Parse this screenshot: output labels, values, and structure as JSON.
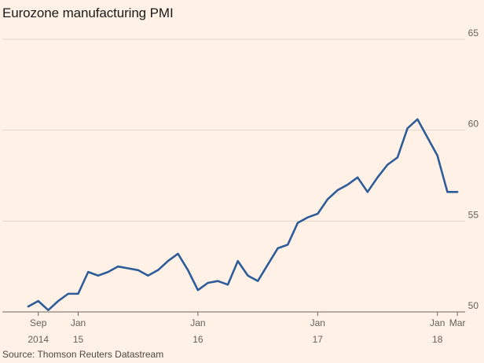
{
  "chart_data": {
    "type": "line",
    "title": "Eurozone manufacturing PMI",
    "source": "Source: Thomson Reuters Datastream",
    "xlabel": "",
    "ylabel": "",
    "ylim": [
      50,
      65
    ],
    "yticks": [
      "50",
      "55",
      "60",
      "65"
    ],
    "grid": true,
    "y_axis_position": "right",
    "line_color": "#2e5c99",
    "x_ticks": [
      {
        "x": "2014-09",
        "line1": "Sep",
        "line2": "2014"
      },
      {
        "x": "2015-01",
        "line1": "Jan",
        "line2": "15"
      },
      {
        "x": "2016-01",
        "line1": "Jan",
        "line2": "16"
      },
      {
        "x": "2017-01",
        "line1": "Jan",
        "line2": "17"
      },
      {
        "x": "2018-01",
        "line1": "Jan",
        "line2": "18"
      },
      {
        "x": "2018-03",
        "line1": "Mar",
        "line2": ""
      }
    ],
    "x": [
      "2014-08",
      "2014-09",
      "2014-10",
      "2014-11",
      "2014-12",
      "2015-01",
      "2015-02",
      "2015-03",
      "2015-04",
      "2015-05",
      "2015-06",
      "2015-07",
      "2015-08",
      "2015-09",
      "2015-10",
      "2015-11",
      "2015-12",
      "2016-01",
      "2016-02",
      "2016-03",
      "2016-04",
      "2016-05",
      "2016-06",
      "2016-07",
      "2016-08",
      "2016-09",
      "2016-10",
      "2016-11",
      "2016-12",
      "2017-01",
      "2017-02",
      "2017-03",
      "2017-04",
      "2017-05",
      "2017-06",
      "2017-07",
      "2017-08",
      "2017-09",
      "2017-10",
      "2017-11",
      "2017-12",
      "2018-01",
      "2018-02",
      "2018-03"
    ],
    "series": [
      {
        "values": [
          50.3,
          50.6,
          50.1,
          50.6,
          51.0,
          51.0,
          52.2,
          52.0,
          52.2,
          52.5,
          52.4,
          52.3,
          52.0,
          52.3,
          52.8,
          53.2,
          52.3,
          51.2,
          51.6,
          51.7,
          51.5,
          52.8,
          52.0,
          51.7,
          52.6,
          53.5,
          53.7,
          54.9,
          55.2,
          55.4,
          56.2,
          56.7,
          57.0,
          57.4,
          56.6,
          57.4,
          58.1,
          58.5,
          60.1,
          60.6,
          59.6,
          58.6,
          56.6,
          56.6
        ]
      }
    ]
  }
}
